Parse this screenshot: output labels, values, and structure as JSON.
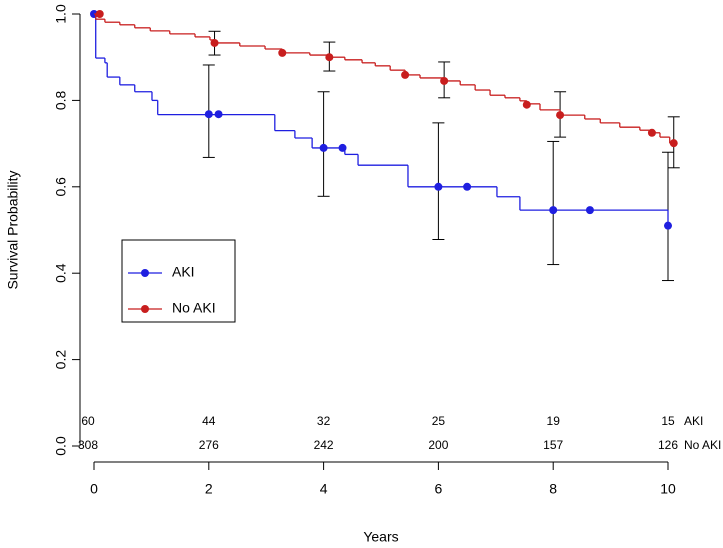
{
  "chart_data": {
    "type": "survival",
    "x_label": "Years",
    "y_label": "Survival Probability",
    "xlim": [
      0,
      10
    ],
    "ylim": [
      0,
      1
    ],
    "xticks": [
      0,
      2,
      4,
      6,
      8,
      10
    ],
    "yticks": [
      {
        "value": 0,
        "label": "0.0"
      },
      0.2,
      0.4,
      0.6,
      0.8,
      {
        "value": 1,
        "label": "1.0"
      }
    ],
    "legend": "left",
    "series": [
      {
        "name": "AKI",
        "color": "#1f1fe0",
        "x": [
          0,
          0.03,
          0.19,
          0.23,
          0.45,
          0.71,
          1.01,
          1.11,
          3.15,
          3.5,
          3.8,
          4.37,
          4.6,
          5.47,
          7.02,
          7.42,
          10.0
        ],
        "values": [
          1.0,
          0.898,
          0.887,
          0.854,
          0.836,
          0.82,
          0.8,
          0.767,
          0.73,
          0.713,
          0.69,
          0.675,
          0.65,
          0.6,
          0.577,
          0.546,
          0.51
        ],
        "markers": {
          "x": [
            0,
            2.0,
            2.17,
            4.0,
            4.33,
            6.0,
            6.5,
            8.0,
            8.64,
            10.0
          ],
          "values": [
            1.0,
            0.768,
            0.768,
            0.69,
            0.69,
            0.6,
            0.6,
            0.546,
            0.546,
            0.51
          ]
        },
        "error_bars": {
          "x": [
            2,
            4,
            6,
            8,
            10
          ],
          "lower": [
            0.668,
            0.578,
            0.478,
            0.42,
            0.383
          ],
          "upper": [
            0.882,
            0.82,
            0.748,
            0.705,
            0.68
          ]
        }
      },
      {
        "name": "No AKI",
        "color": "#c81e1e",
        "x": [
          0,
          0.03,
          0.19,
          0.45,
          0.71,
          0.98,
          1.32,
          1.76,
          2.02,
          2.11,
          2.54,
          2.98,
          3.28,
          3.76,
          4.11,
          4.37,
          4.67,
          4.9,
          5.16,
          5.42,
          5.68,
          6.1,
          6.38,
          6.64,
          6.9,
          7.16,
          7.42,
          7.54,
          7.77,
          8.12,
          8.55,
          8.82,
          9.16,
          9.51,
          9.72,
          9.86,
          10.03,
          10.1
        ],
        "values": [
          1.0,
          0.988,
          0.981,
          0.975,
          0.968,
          0.961,
          0.954,
          0.947,
          0.94,
          0.933,
          0.926,
          0.919,
          0.91,
          0.905,
          0.9,
          0.894,
          0.887,
          0.88,
          0.87,
          0.859,
          0.852,
          0.845,
          0.836,
          0.824,
          0.812,
          0.806,
          0.799,
          0.792,
          0.778,
          0.766,
          0.757,
          0.748,
          0.738,
          0.731,
          0.725,
          0.715,
          0.701,
          0.701
        ],
        "markers": {
          "x": [
            0.1,
            2.1,
            3.28,
            4.1,
            5.42,
            6.1,
            7.54,
            8.12,
            9.72,
            10.1
          ],
          "values": [
            1.0,
            0.933,
            0.91,
            0.9,
            0.859,
            0.845,
            0.79,
            0.766,
            0.725,
            0.701
          ]
        },
        "error_bars": {
          "x": [
            2.1,
            4.1,
            6.1,
            8.12,
            10.1
          ],
          "lower": [
            0.905,
            0.868,
            0.806,
            0.715,
            0.644
          ],
          "upper": [
            0.96,
            0.935,
            0.889,
            0.82,
            0.762
          ]
        }
      }
    ],
    "risk_table": {
      "times": [
        0,
        2,
        4,
        6,
        8,
        10
      ],
      "rows": [
        {
          "name": "AKI",
          "values": [
            60,
            44,
            32,
            25,
            19,
            15
          ]
        },
        {
          "name": "No AKI",
          "values": [
            308,
            276,
            242,
            200,
            157,
            126
          ]
        }
      ]
    }
  }
}
